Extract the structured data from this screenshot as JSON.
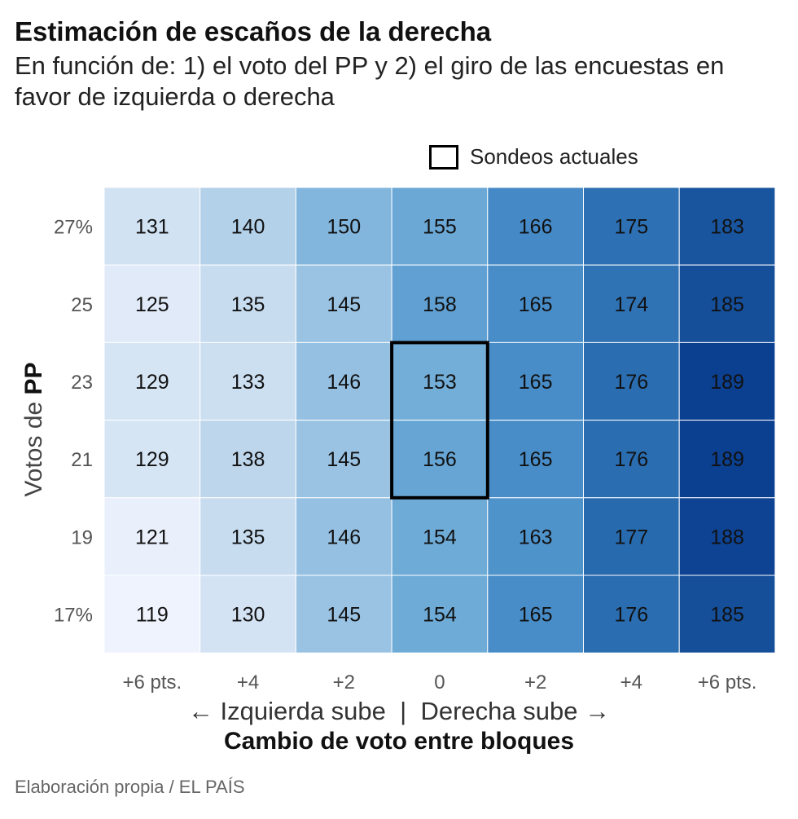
{
  "header": {
    "title": "Estimación de escaños de la derecha",
    "subtitle": "En función de: 1) el voto del PP y 2) el giro de las encuestas en favor de izquierda o derecha"
  },
  "legend": {
    "label": "Sondeos actuales"
  },
  "axes": {
    "y_title_prefix": "Votos de ",
    "y_title_bold": "PP",
    "direction_left": "← Izquierda sube",
    "direction_sep": "|",
    "direction_right": "Derecha sube →",
    "x_title": "Cambio de voto entre bloques"
  },
  "source": "Elaboración propia / EL PAÍS",
  "colors": {
    "low": "#eef3fd",
    "high": "#0b3f8f",
    "highlight": "#000000"
  },
  "chart_data": {
    "type": "heatmap",
    "title": "Estimación de escaños de la derecha",
    "xlabel": "Cambio de voto entre bloques",
    "ylabel": "Votos de PP",
    "x_tick_labels": [
      "+6 pts.",
      "+4",
      "+2",
      "0",
      "+2",
      "+4",
      "+6 pts."
    ],
    "x_shift": [
      -6,
      -4,
      -2,
      0,
      2,
      4,
      6
    ],
    "y_tick_labels": [
      "27%",
      "25",
      "23",
      "21",
      "19",
      "17%"
    ],
    "y_values": [
      27,
      25,
      23,
      21,
      19,
      17
    ],
    "values": [
      [
        131,
        140,
        150,
        155,
        166,
        175,
        183
      ],
      [
        125,
        135,
        145,
        158,
        165,
        174,
        185
      ],
      [
        129,
        133,
        146,
        153,
        165,
        176,
        189
      ],
      [
        129,
        138,
        145,
        156,
        165,
        176,
        189
      ],
      [
        121,
        135,
        146,
        154,
        163,
        177,
        188
      ],
      [
        119,
        130,
        145,
        154,
        165,
        176,
        185
      ]
    ],
    "value_range": [
      119,
      189
    ],
    "highlight": {
      "label": "Sondeos actuales",
      "x_shift": [
        0
      ],
      "y_values": [
        23,
        21
      ]
    }
  }
}
